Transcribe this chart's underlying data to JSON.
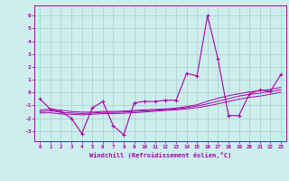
{
  "xlabel": "Windchill (Refroidissement éolien,°C)",
  "ylabel": "",
  "xlim": [
    -0.5,
    23.5
  ],
  "ylim": [
    -3.8,
    6.8
  ],
  "yticks": [
    -3,
    -2,
    -1,
    0,
    1,
    2,
    3,
    4,
    5,
    6
  ],
  "xticks": [
    0,
    1,
    2,
    3,
    4,
    5,
    6,
    7,
    8,
    9,
    10,
    11,
    12,
    13,
    14,
    15,
    16,
    17,
    18,
    19,
    20,
    21,
    22,
    23
  ],
  "xtick_labels": [
    "0",
    "1",
    "2",
    "3",
    "4",
    "5",
    "6",
    "7",
    "8",
    "9",
    "10",
    "11",
    "12",
    "13",
    "14",
    "15",
    "16",
    "17",
    "18",
    "19",
    "20",
    "21",
    "22",
    "23"
  ],
  "background_color": "#cceeed",
  "grid_color": "#aacccc",
  "line_color": "#aa00aa",
  "main_y": [
    -0.5,
    -1.3,
    -1.5,
    -2.0,
    -3.2,
    -1.2,
    -0.7,
    -2.6,
    -3.3,
    -0.8,
    -0.7,
    -0.7,
    -0.6,
    -0.6,
    1.5,
    1.3,
    6.0,
    2.6,
    -1.8,
    -1.8,
    -0.1,
    0.2,
    0.1,
    1.4
  ],
  "reg1_y": [
    -1.5,
    -1.42,
    -1.55,
    -1.6,
    -1.65,
    -1.6,
    -1.55,
    -1.55,
    -1.52,
    -1.48,
    -1.43,
    -1.38,
    -1.33,
    -1.28,
    -1.18,
    -1.05,
    -0.88,
    -0.68,
    -0.48,
    -0.28,
    -0.15,
    -0.05,
    0.08,
    0.22
  ],
  "reg2_y": [
    -1.38,
    -1.28,
    -1.38,
    -1.48,
    -1.53,
    -1.53,
    -1.48,
    -1.48,
    -1.45,
    -1.4,
    -1.35,
    -1.32,
    -1.28,
    -1.22,
    -1.1,
    -0.95,
    -0.68,
    -0.45,
    -0.25,
    -0.1,
    0.05,
    0.15,
    0.25,
    0.4
  ],
  "reg3_y": [
    -1.6,
    -1.58,
    -1.68,
    -1.7,
    -1.75,
    -1.7,
    -1.65,
    -1.65,
    -1.62,
    -1.58,
    -1.52,
    -1.46,
    -1.4,
    -1.35,
    -1.28,
    -1.18,
    -1.05,
    -0.88,
    -0.7,
    -0.52,
    -0.38,
    -0.28,
    -0.14,
    0.02
  ]
}
